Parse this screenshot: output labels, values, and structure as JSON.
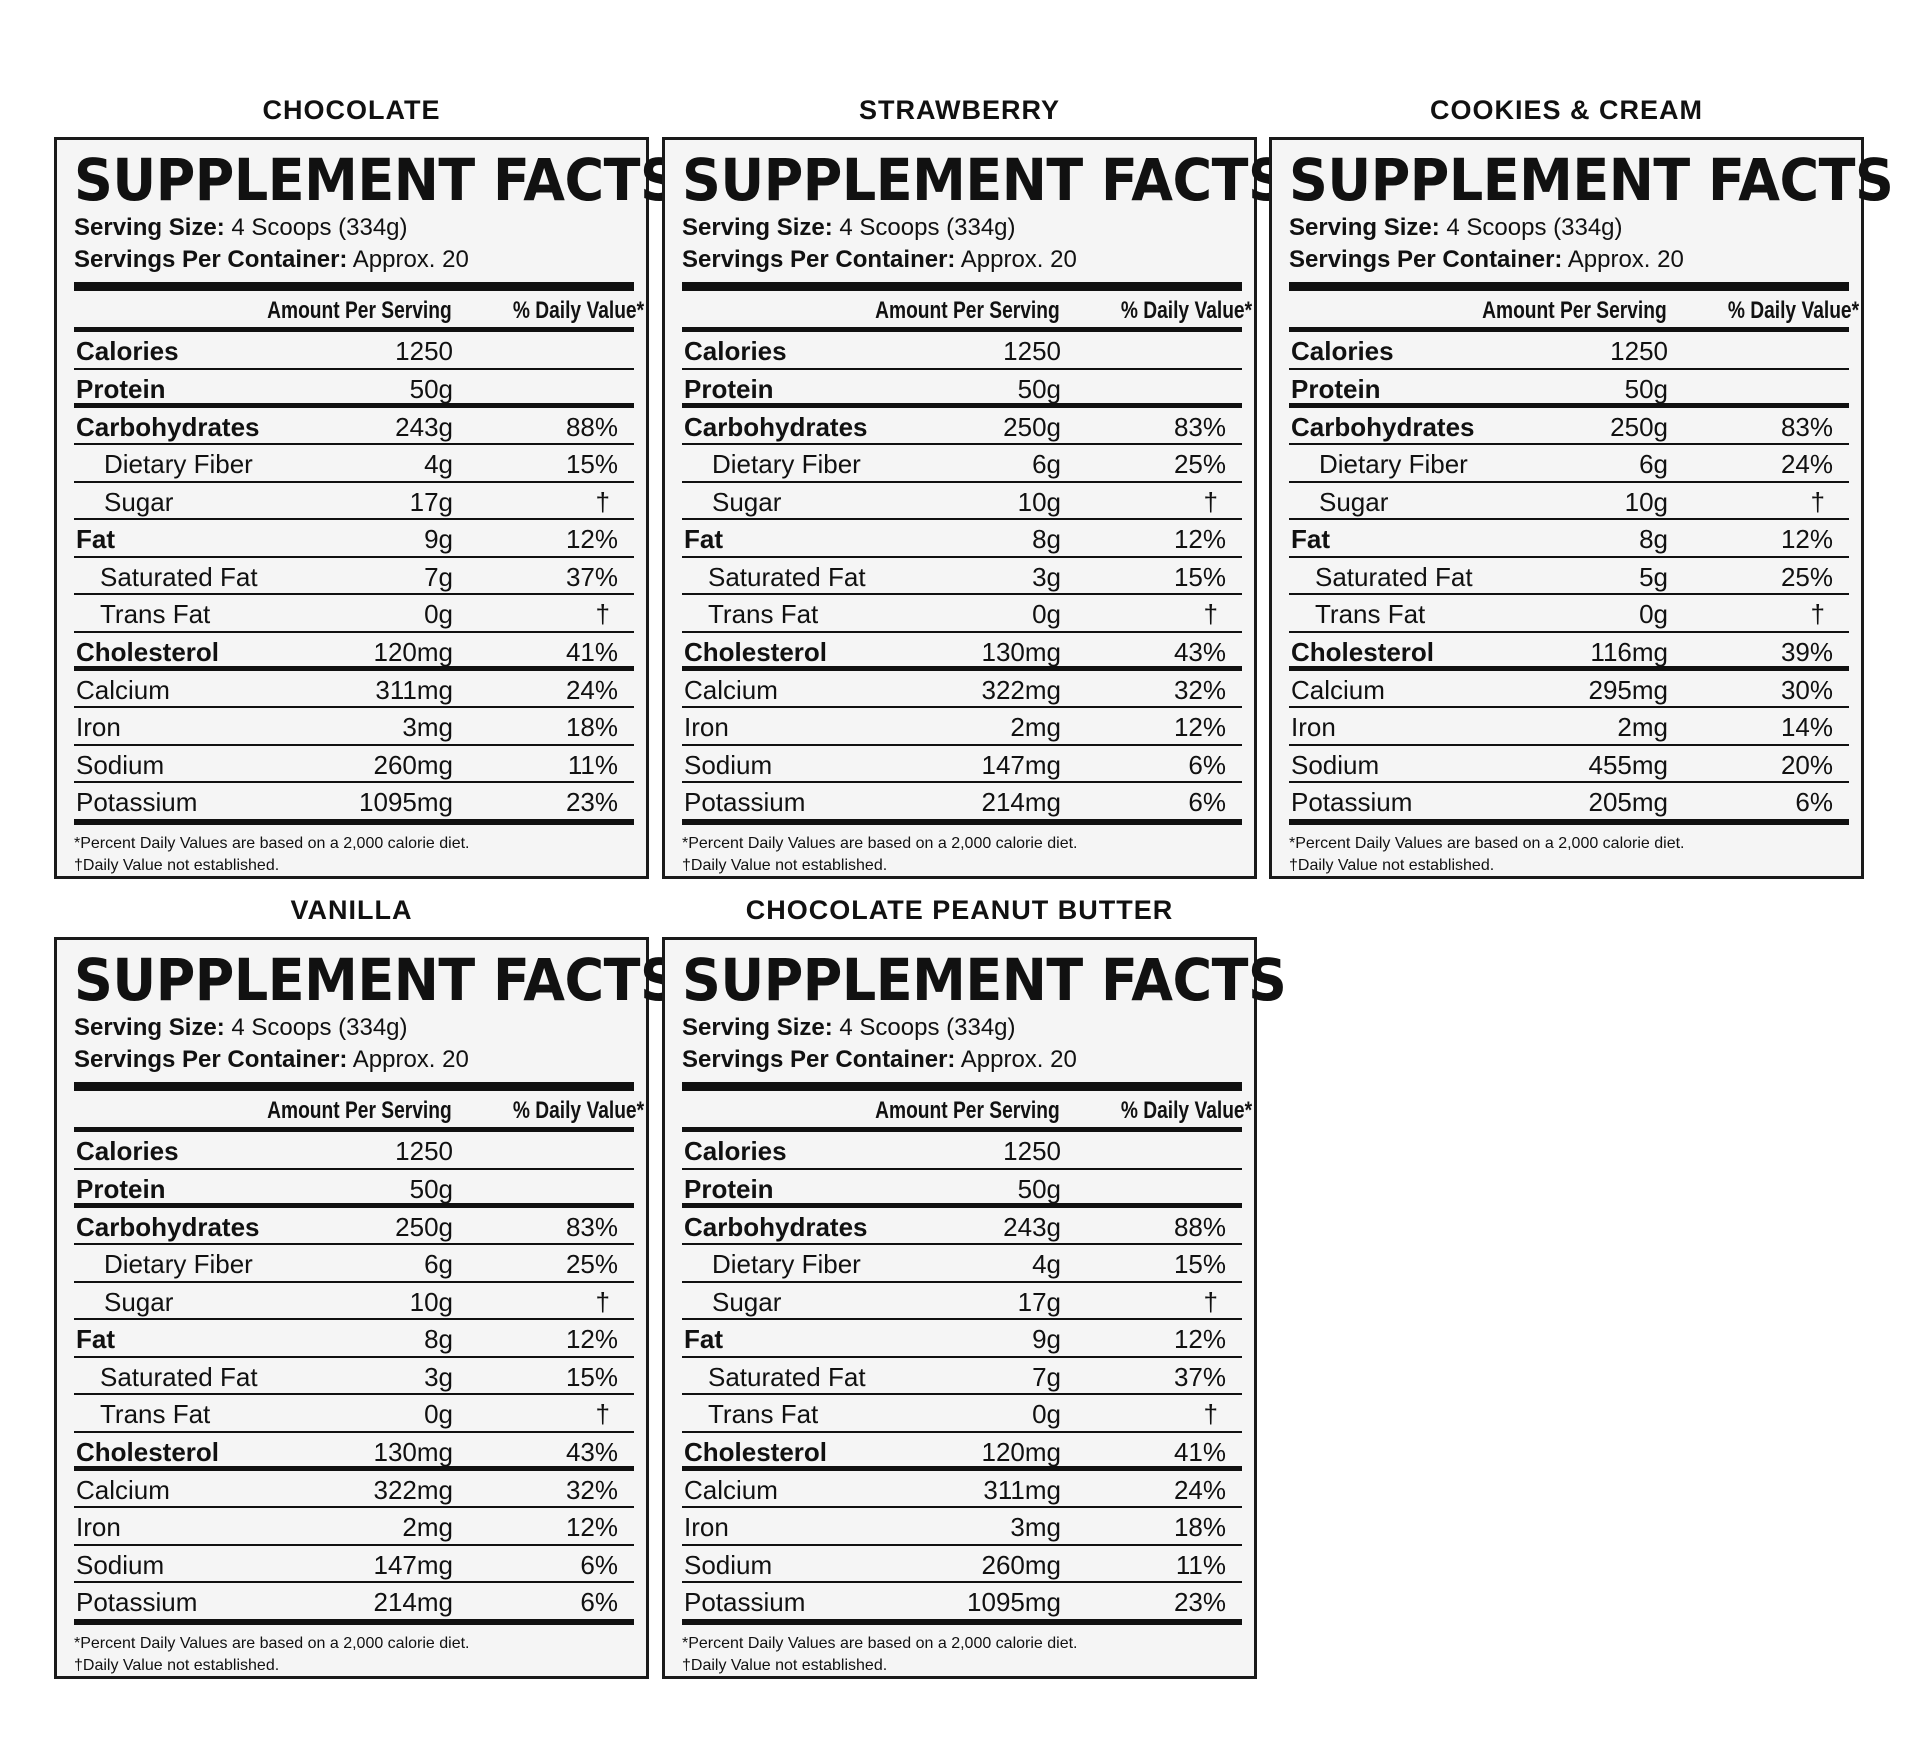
{
  "common": {
    "title": "SUPPLEMENT FACTS",
    "serving_size_label": "Serving Size:",
    "serving_size_value": "4 Scoops (334g)",
    "servings_label": "Servings Per Container:",
    "servings_value": "Approx. 20",
    "col_amount": "Amount Per Serving",
    "col_dv": "% Daily Value*",
    "footnote_1": "*Percent Daily Values are based on a 2,000 calorie diet.",
    "footnote_2": "†Daily Value not established."
  },
  "nutrients": [
    "Calories",
    "Protein",
    "Carbohydrates",
    "Dietary Fiber",
    "Sugar",
    "Fat",
    "Saturated Fat",
    "Trans Fat",
    "Cholesterol",
    "Calcium",
    "Iron",
    "Sodium",
    "Potassium"
  ],
  "panels": [
    {
      "flavor": "CHOCOLATE",
      "amounts": [
        "1250",
        "50g",
        "243g",
        "4g",
        "17g",
        "9g",
        "7g",
        "0g",
        "120mg",
        "311mg",
        "3mg",
        "260mg",
        "1095mg"
      ],
      "dv": [
        "",
        "",
        "88%",
        "15%",
        "†",
        "12%",
        "37%",
        "†",
        "41%",
        "24%",
        "18%",
        "11%",
        "23%"
      ]
    },
    {
      "flavor": "STRAWBERRY",
      "amounts": [
        "1250",
        "50g",
        "250g",
        "6g",
        "10g",
        "8g",
        "3g",
        "0g",
        "130mg",
        "322mg",
        "2mg",
        "147mg",
        "214mg"
      ],
      "dv": [
        "",
        "",
        "83%",
        "25%",
        "†",
        "12%",
        "15%",
        "†",
        "43%",
        "32%",
        "12%",
        "6%",
        "6%"
      ]
    },
    {
      "flavor": "COOKIES & CREAM",
      "amounts": [
        "1250",
        "50g",
        "250g",
        "6g",
        "10g",
        "8g",
        "5g",
        "0g",
        "116mg",
        "295mg",
        "2mg",
        "455mg",
        "205mg"
      ],
      "dv": [
        "",
        "",
        "83%",
        "24%",
        "†",
        "12%",
        "25%",
        "†",
        "39%",
        "30%",
        "14%",
        "20%",
        "6%"
      ]
    },
    {
      "flavor": "VANILLA",
      "amounts": [
        "1250",
        "50g",
        "250g",
        "6g",
        "10g",
        "8g",
        "3g",
        "0g",
        "130mg",
        "322mg",
        "2mg",
        "147mg",
        "214mg"
      ],
      "dv": [
        "",
        "",
        "83%",
        "25%",
        "†",
        "12%",
        "15%",
        "†",
        "43%",
        "32%",
        "12%",
        "6%",
        "6%"
      ]
    },
    {
      "flavor": "CHOCOLATE PEANUT BUTTER",
      "amounts": [
        "1250",
        "50g",
        "243g",
        "4g",
        "17g",
        "9g",
        "7g",
        "0g",
        "120mg",
        "311mg",
        "3mg",
        "260mg",
        "1095mg"
      ],
      "dv": [
        "",
        "",
        "88%",
        "15%",
        "†",
        "12%",
        "37%",
        "†",
        "41%",
        "24%",
        "18%",
        "11%",
        "23%"
      ]
    }
  ]
}
